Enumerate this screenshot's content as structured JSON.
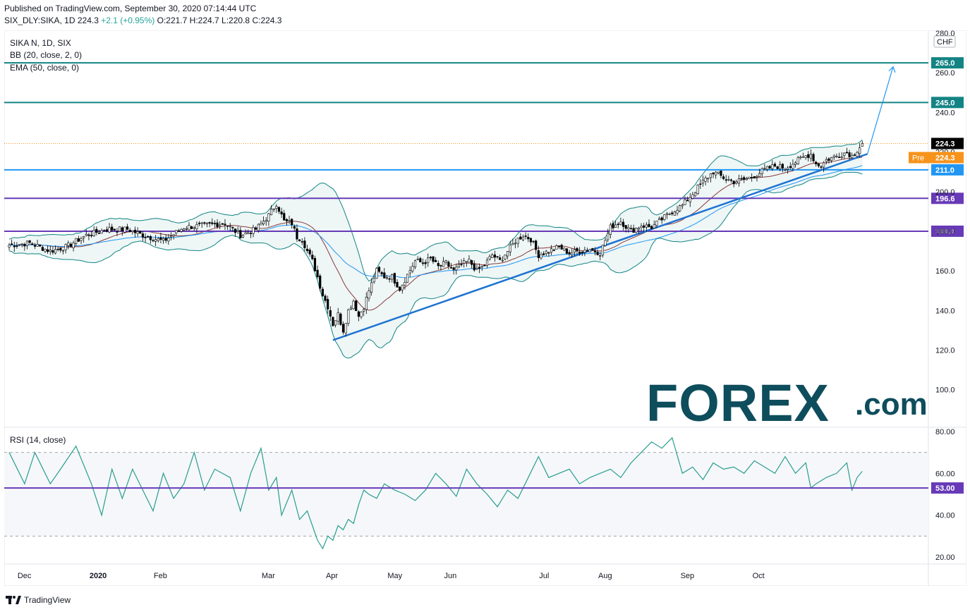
{
  "header": {
    "published": "Published on TradingView.com, September 30, 2020 07:14:44 UTC",
    "symbol": "SIX_DLY:SIKA, 1D",
    "last": "224.3",
    "change": "+2.1 (+0.95%)",
    "o": "O:221.7",
    "h": "H:224.7",
    "l": "L:220.8",
    "c": "C:224.3"
  },
  "legend": {
    "title": "SIKA N, 1D, SIX",
    "bb": "BB (20, close, 2, 0)",
    "ema": "EMA (50, close, 0)",
    "rsi": "RSI (14, close)"
  },
  "footer": {
    "brand": "TradingView"
  },
  "watermark": {
    "big": "FOREX",
    "small": ".com"
  },
  "colors": {
    "up": "#ffffff",
    "down": "#000000",
    "teal": "#138484",
    "purple": "#673ab7",
    "blue": "#2196f3",
    "trend": "#1e73d2",
    "ema": "#8b3a3a",
    "bbfill": "#eef6f6",
    "rsi": "#2a9d8f",
    "pre": "#f7931a"
  },
  "chart_data": [
    {
      "type": "candlestick",
      "title": "SIKA N, 1D, SIX",
      "currency": "CHF",
      "ylim": [
        80,
        280
      ],
      "yticks": [
        100,
        120,
        140,
        160,
        180,
        200,
        220,
        240,
        260,
        280
      ],
      "x_labels": [
        "Dec",
        "2020",
        "Feb",
        "Mar",
        "Apr",
        "May",
        "Jun",
        "Jul",
        "Aug",
        "Sep",
        "Oct"
      ],
      "close_path": [
        [
          0,
          173
        ],
        [
          8,
          174
        ],
        [
          16,
          170
        ],
        [
          22,
          172
        ],
        [
          30,
          178
        ],
        [
          38,
          181
        ],
        [
          46,
          181
        ],
        [
          52,
          178
        ],
        [
          60,
          175
        ],
        [
          68,
          182
        ],
        [
          76,
          183
        ],
        [
          84,
          184
        ],
        [
          90,
          178
        ],
        [
          96,
          181
        ],
        [
          101,
          188
        ],
        [
          104,
          194
        ],
        [
          107,
          185
        ],
        [
          110,
          184
        ],
        [
          112,
          177
        ],
        [
          114,
          176
        ],
        [
          116,
          170
        ],
        [
          118,
          165
        ],
        [
          120,
          157
        ],
        [
          122,
          148
        ],
        [
          124,
          142
        ],
        [
          126,
          133
        ],
        [
          128,
          138
        ],
        [
          130,
          130
        ],
        [
          132,
          140
        ],
        [
          134,
          145
        ],
        [
          136,
          137
        ],
        [
          138,
          142
        ],
        [
          140,
          150
        ],
        [
          143,
          160
        ],
        [
          146,
          157
        ],
        [
          149,
          157
        ],
        [
          152,
          151
        ],
        [
          155,
          158
        ],
        [
          158,
          165
        ],
        [
          161,
          164
        ],
        [
          164,
          166
        ],
        [
          167,
          162
        ],
        [
          170,
          164
        ],
        [
          173,
          160
        ],
        [
          176,
          163
        ],
        [
          179,
          165
        ],
        [
          182,
          160
        ],
        [
          185,
          163
        ],
        [
          188,
          168
        ],
        [
          191,
          165
        ],
        [
          194,
          170
        ],
        [
          197,
          175
        ],
        [
          200,
          178
        ],
        [
          203,
          176
        ],
        [
          206,
          168
        ],
        [
          210,
          170
        ],
        [
          214,
          172
        ],
        [
          218,
          169
        ],
        [
          222,
          170
        ],
        [
          226,
          171
        ],
        [
          230,
          169
        ],
        [
          234,
          182
        ],
        [
          238,
          185
        ],
        [
          242,
          180
        ],
        [
          246,
          183
        ],
        [
          250,
          182
        ],
        [
          254,
          186
        ],
        [
          258,
          190
        ],
        [
          262,
          193
        ],
        [
          266,
          199
        ],
        [
          270,
          205
        ],
        [
          274,
          210
        ],
        [
          278,
          207
        ],
        [
          282,
          205
        ],
        [
          286,
          206
        ],
        [
          290,
          208
        ],
        [
          294,
          211
        ],
        [
          298,
          213
        ],
        [
          302,
          212
        ],
        [
          306,
          215
        ],
        [
          310,
          218
        ],
        [
          312,
          219
        ],
        [
          314,
          214
        ],
        [
          316,
          213
        ],
        [
          318,
          216
        ],
        [
          322,
          218
        ],
        [
          326,
          220
        ],
        [
          328,
          218
        ],
        [
          330,
          221
        ],
        [
          332,
          224.3
        ]
      ],
      "horizontal_levels": [
        {
          "value": 265.0,
          "label": "265.0",
          "color": "teal"
        },
        {
          "value": 245.0,
          "label": "245.0",
          "color": "teal"
        },
        {
          "value": 211.0,
          "label": "211.0",
          "color": "blue"
        },
        {
          "value": 196.6,
          "label": "196.6",
          "color": "purple"
        },
        {
          "value": 180.0,
          "label": "180.0",
          "color": "purple"
        }
      ],
      "last_price": {
        "value": 224.3,
        "label": "224.3"
      },
      "pre_market": {
        "value": 224.3,
        "label": "224.3",
        "tag": "Pre"
      },
      "trendline": [
        [
          126,
          125
        ],
        [
          334,
          219
        ]
      ],
      "projection_arrow": [
        [
          334,
          219
        ],
        [
          344,
          263
        ]
      ]
    },
    {
      "type": "line",
      "title": "RSI (14, close)",
      "ylim": [
        20,
        80
      ],
      "yticks": [
        20,
        40,
        60,
        80
      ],
      "upper_band": 70,
      "lower_band": 30,
      "level": {
        "value": 53.0,
        "label": "53.00"
      },
      "x": [
        0,
        6,
        10,
        16,
        20,
        26,
        32,
        36,
        40,
        44,
        48,
        52,
        56,
        60,
        64,
        68,
        72,
        76,
        80,
        86,
        90,
        94,
        98,
        101,
        104,
        106,
        110,
        113,
        116,
        118,
        120,
        122,
        124,
        126,
        128,
        130,
        132,
        134,
        136,
        138,
        140,
        143,
        146,
        150,
        154,
        158,
        162,
        166,
        170,
        174,
        178,
        182,
        186,
        190,
        194,
        198,
        202,
        206,
        210,
        214,
        218,
        222,
        226,
        230,
        234,
        238,
        242,
        246,
        250,
        254,
        258,
        262,
        266,
        270,
        274,
        278,
        282,
        286,
        290,
        294,
        298,
        302,
        306,
        310,
        312,
        314,
        318,
        322,
        326,
        328,
        330,
        332
      ],
      "values": [
        70,
        55,
        70,
        55,
        62,
        73,
        55,
        40,
        62,
        48,
        62,
        52,
        42,
        60,
        48,
        55,
        70,
        52,
        62,
        58,
        42,
        60,
        72,
        52,
        58,
        40,
        52,
        38,
        42,
        35,
        28,
        24,
        30,
        28,
        35,
        33,
        38,
        36,
        45,
        52,
        50,
        48,
        55,
        52,
        50,
        47,
        52,
        60,
        55,
        49,
        62,
        55,
        50,
        44,
        52,
        48,
        58,
        68,
        58,
        60,
        62,
        55,
        58,
        60,
        62,
        58,
        65,
        70,
        75,
        72,
        77,
        60,
        63,
        57,
        65,
        62,
        63,
        60,
        66,
        63,
        60,
        68,
        60,
        65,
        53,
        55,
        58,
        60,
        65,
        52,
        58,
        61
      ]
    }
  ]
}
